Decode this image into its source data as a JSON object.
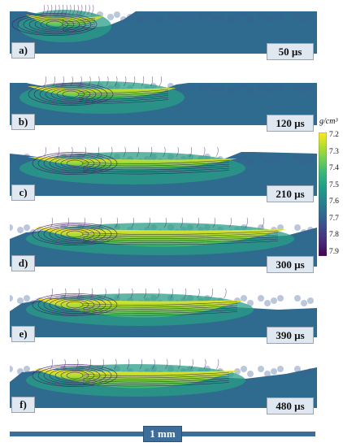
{
  "panels": [
    {
      "letter": "a)",
      "time": "50 µs"
    },
    {
      "letter": "b)",
      "time": "120 µs"
    },
    {
      "letter": "c)",
      "time": "210 µs"
    },
    {
      "letter": "d)",
      "time": "300 µs"
    },
    {
      "letter": "e)",
      "time": "390 µs"
    },
    {
      "letter": "f)",
      "time": "480 µs"
    }
  ],
  "colorbar": {
    "unit": "g/cm³",
    "ticks": [
      "7.2",
      "7.3",
      "7.4",
      "7.5",
      "7.6",
      "7.7",
      "7.8",
      "7.9"
    ],
    "colors": [
      "#fde725",
      "#b5de2b",
      "#6ece58",
      "#35b779",
      "#1f9e89",
      "#26828e",
      "#31688e",
      "#3e4989",
      "#482878",
      "#440154"
    ]
  },
  "scale_bar": {
    "label": "1 mm"
  }
}
